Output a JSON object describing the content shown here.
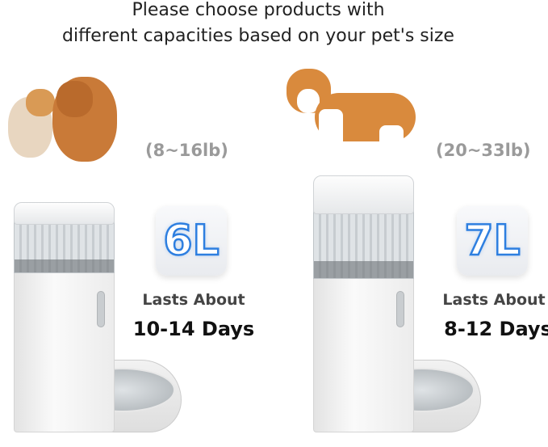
{
  "header": {
    "line1": "Please choose products with",
    "line2": "different capacities based on your pet's size"
  },
  "products": [
    {
      "weight": "(8~16lb)",
      "capacity": "6L",
      "lasts_label": "Lasts About",
      "days": "10-14 Days"
    },
    {
      "weight": "(20~33lb)",
      "capacity": "7L",
      "lasts_label": "Lasts About",
      "days": "8-12 Days"
    }
  ],
  "colors": {
    "capacity_outline": "#2e7fe0",
    "weight_text": "#9a9a9a"
  }
}
